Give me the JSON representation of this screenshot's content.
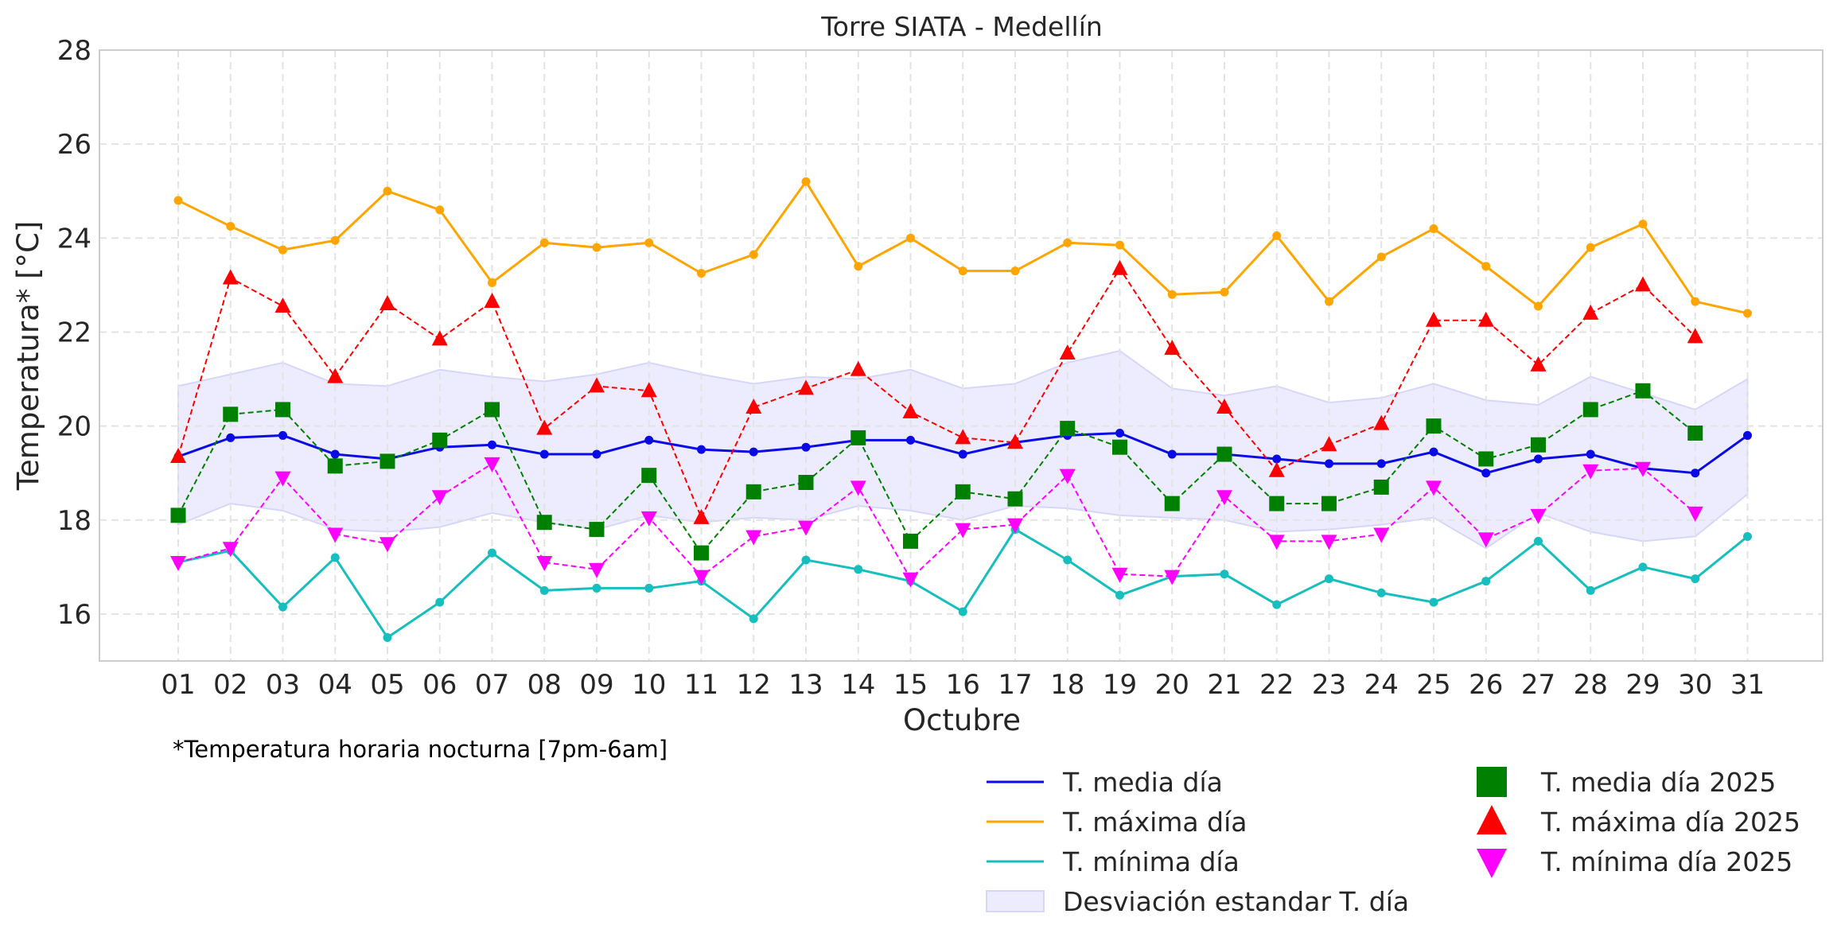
{
  "chart_data": {
    "type": "line",
    "title": "Torre SIATA - Medellín",
    "xlabel": "Octubre",
    "ylabel": "Temperatura* [°C]",
    "note": "*Temperatura horaria nocturna [7pm-6am]",
    "ylim": [
      15,
      28
    ],
    "yticks": [
      16,
      18,
      20,
      22,
      24,
      26,
      28
    ],
    "grid": true,
    "legend_position": "bottom-right",
    "categories": [
      "01",
      "02",
      "03",
      "04",
      "05",
      "06",
      "07",
      "08",
      "09",
      "10",
      "11",
      "12",
      "13",
      "14",
      "15",
      "16",
      "17",
      "18",
      "19",
      "20",
      "21",
      "22",
      "23",
      "24",
      "25",
      "26",
      "27",
      "28",
      "29",
      "30",
      "31"
    ],
    "band": {
      "name": "Desviación estandar T. día",
      "color": "#ececfe",
      "upper": [
        20.85,
        21.1,
        21.35,
        20.9,
        20.85,
        21.2,
        21.05,
        20.95,
        21.1,
        21.35,
        21.1,
        20.9,
        21.05,
        21.0,
        21.2,
        20.8,
        20.9,
        21.35,
        21.6,
        20.8,
        20.65,
        20.85,
        20.5,
        20.6,
        20.9,
        20.55,
        20.45,
        21.05,
        20.7,
        20.35,
        21.0
      ],
      "lower": [
        17.9,
        18.35,
        18.2,
        17.8,
        17.75,
        17.85,
        18.15,
        17.95,
        17.8,
        18.1,
        17.95,
        18.05,
        18.0,
        18.3,
        18.2,
        18.0,
        18.3,
        18.25,
        18.1,
        18.05,
        18.0,
        17.75,
        17.8,
        17.9,
        18.05,
        17.4,
        18.15,
        17.75,
        17.55,
        17.65,
        18.55
      ]
    },
    "series": [
      {
        "name": "T. media día",
        "color": "#0a0ae6",
        "style": "solid",
        "marker": "dot",
        "values": [
          19.35,
          19.75,
          19.8,
          19.4,
          19.3,
          19.55,
          19.6,
          19.4,
          19.4,
          19.7,
          19.5,
          19.45,
          19.55,
          19.7,
          19.7,
          19.4,
          19.65,
          19.8,
          19.85,
          19.4,
          19.4,
          19.3,
          19.2,
          19.2,
          19.45,
          19.0,
          19.3,
          19.4,
          19.1,
          19.0,
          19.8
        ]
      },
      {
        "name": "T. máxima día",
        "color": "#ffa500",
        "style": "solid",
        "marker": "dot",
        "values": [
          24.8,
          24.25,
          23.75,
          23.95,
          25.0,
          24.6,
          23.05,
          23.9,
          23.8,
          23.9,
          23.25,
          23.65,
          25.2,
          23.4,
          24.0,
          23.3,
          23.3,
          23.9,
          23.85,
          22.8,
          22.85,
          24.05,
          22.65,
          23.6,
          24.2,
          23.4,
          22.55,
          23.8,
          24.3,
          22.65,
          22.4
        ]
      },
      {
        "name": "T. mínima día",
        "color": "#17bebe",
        "style": "solid",
        "marker": "dot",
        "values": [
          17.1,
          17.35,
          16.15,
          17.2,
          15.5,
          16.25,
          17.3,
          16.5,
          16.55,
          16.55,
          16.7,
          15.9,
          17.15,
          16.95,
          16.7,
          16.05,
          17.8,
          17.15,
          16.4,
          16.8,
          16.85,
          16.2,
          16.75,
          16.45,
          16.25,
          16.7,
          17.55,
          16.5,
          17.0,
          16.75,
          17.65
        ]
      },
      {
        "name": "T. media día 2025",
        "color": "#008000",
        "style": "dashed",
        "marker": "square",
        "values": [
          18.1,
          20.25,
          20.35,
          19.15,
          19.25,
          19.7,
          20.35,
          17.95,
          17.8,
          18.95,
          17.3,
          18.6,
          18.8,
          19.75,
          17.55,
          18.6,
          18.45,
          19.95,
          19.55,
          18.35,
          19.4,
          18.35,
          18.35,
          18.7,
          20.0,
          19.3,
          19.6,
          20.35,
          20.75,
          19.85,
          null
        ]
      },
      {
        "name": "T. máxima día 2025",
        "color": "#ff0000",
        "style": "dashed",
        "marker": "triangle-up",
        "values": [
          19.35,
          23.15,
          22.55,
          21.05,
          22.6,
          21.85,
          22.65,
          19.95,
          20.85,
          20.75,
          18.05,
          20.4,
          20.8,
          21.2,
          20.3,
          19.75,
          19.65,
          21.55,
          23.35,
          21.65,
          20.4,
          19.05,
          19.6,
          20.05,
          22.25,
          22.25,
          21.3,
          22.4,
          23.0,
          21.9,
          null
        ]
      },
      {
        "name": "T. mínima día 2025",
        "color": "#ff00ff",
        "style": "dashed",
        "marker": "triangle-down",
        "values": [
          17.1,
          17.4,
          18.9,
          17.7,
          17.5,
          18.5,
          19.2,
          17.1,
          16.95,
          18.05,
          16.8,
          17.65,
          17.85,
          18.7,
          16.75,
          17.8,
          17.9,
          18.95,
          16.85,
          16.8,
          18.5,
          17.55,
          17.55,
          17.7,
          18.7,
          17.6,
          18.1,
          19.05,
          19.1,
          18.15,
          null
        ]
      }
    ]
  }
}
